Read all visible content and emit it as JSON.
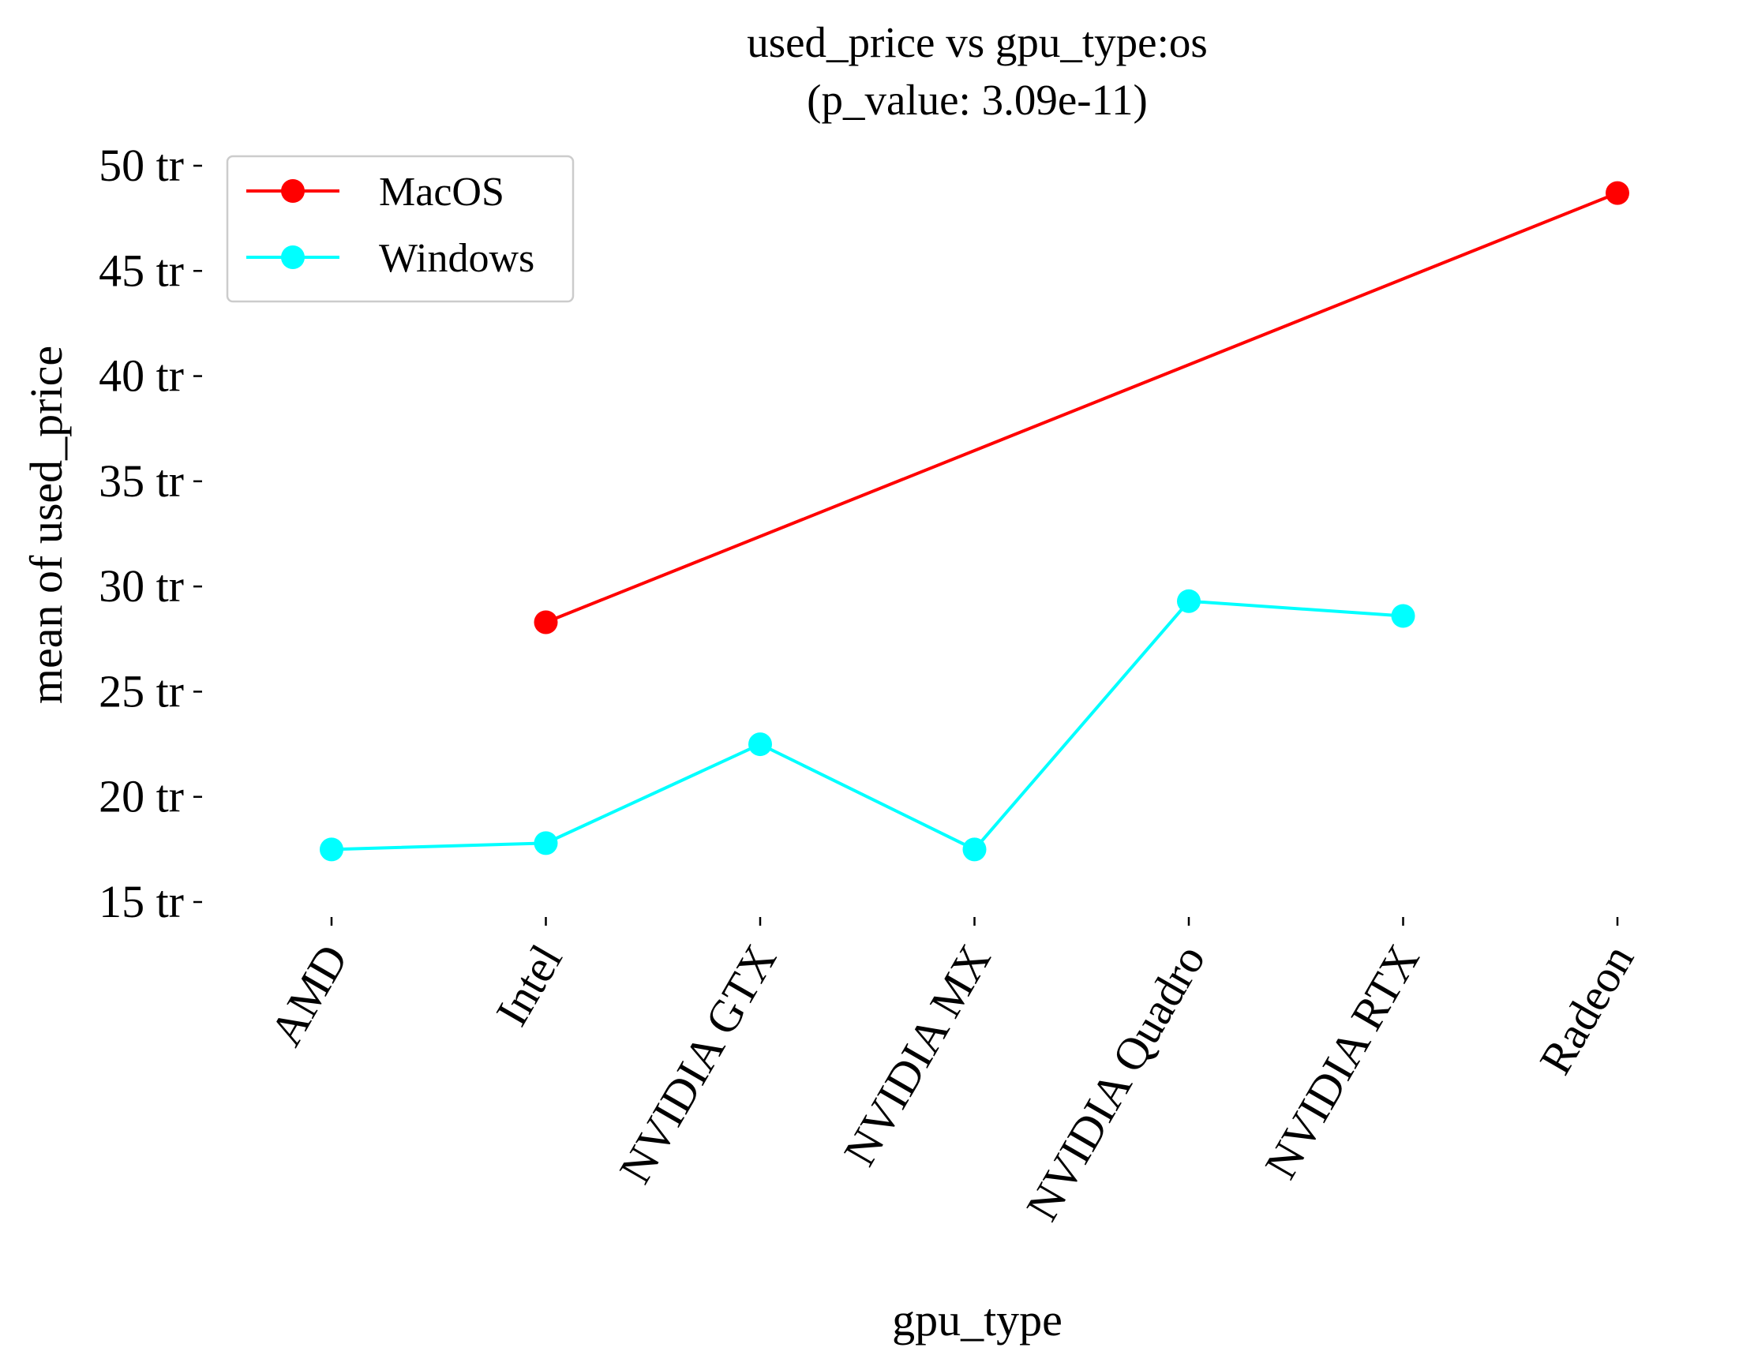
{
  "chart_data": {
    "type": "line",
    "title": "used_price vs gpu_type:os",
    "subtitle": "(p_value: 3.09e-11)",
    "xlabel": "gpu_type",
    "ylabel": "mean of used_price",
    "categories": [
      "AMD",
      "Intel",
      "NVIDIA GTX",
      "NVIDIA MX",
      "NVIDIA Quadro",
      "NVIDIA RTX",
      "Radeon"
    ],
    "ylim": [
      15,
      50
    ],
    "yticks": [
      15,
      20,
      25,
      30,
      35,
      40,
      45,
      50
    ],
    "ytick_labels": [
      "15 tr",
      "20 tr",
      "25 tr",
      "30 tr",
      "35 tr",
      "40 tr",
      "45 tr",
      "50 tr"
    ],
    "grid": false,
    "legend_position": "top-left",
    "series": [
      {
        "name": "MacOS",
        "color": "#ff0000",
        "values": [
          null,
          28.3,
          null,
          null,
          null,
          null,
          48.7
        ]
      },
      {
        "name": "Windows",
        "color": "#00ffff",
        "values": [
          17.5,
          17.8,
          22.5,
          17.5,
          29.3,
          28.6,
          null
        ]
      }
    ]
  }
}
